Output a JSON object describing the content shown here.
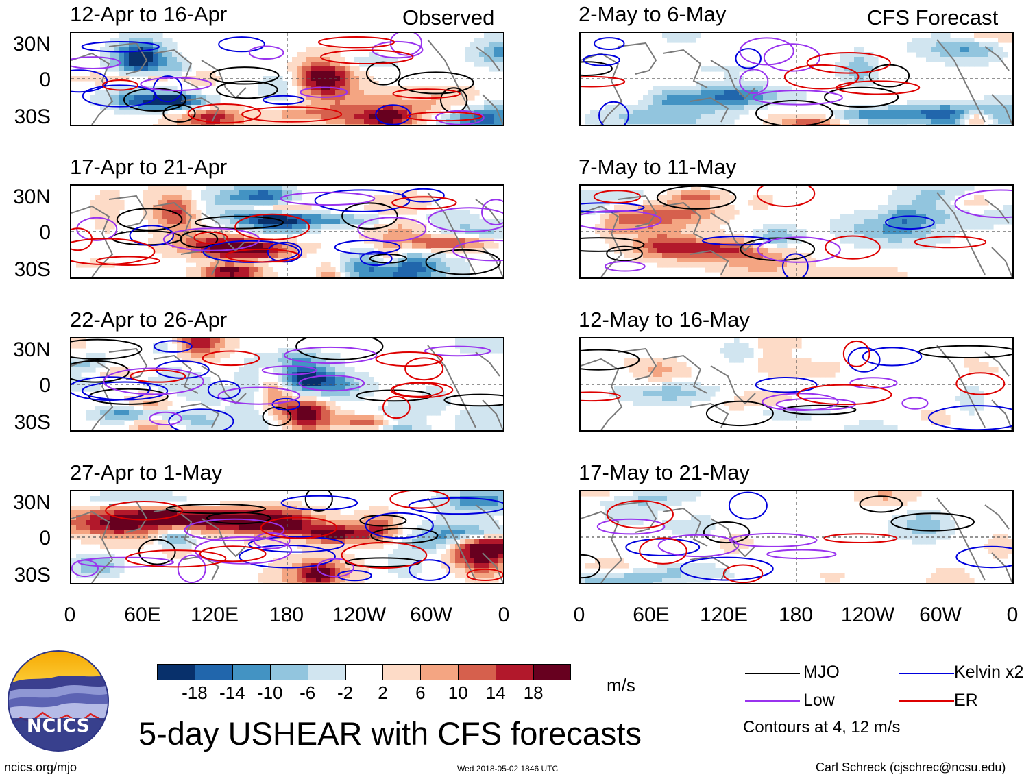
{
  "header": {
    "observed_label": "Observed",
    "forecast_label": "CFS Forecast"
  },
  "panels": {
    "observed": [
      {
        "title": "12-Apr to 16-Apr"
      },
      {
        "title": "17-Apr to 21-Apr"
      },
      {
        "title": "22-Apr to 26-Apr"
      },
      {
        "title": "27-Apr to 1-May"
      }
    ],
    "forecast": [
      {
        "title": "2-May to 6-May"
      },
      {
        "title": "7-May to 11-May"
      },
      {
        "title": "12-May to 16-May"
      },
      {
        "title": "17-May to 21-May"
      }
    ]
  },
  "axes": {
    "lat_labels": [
      "30N",
      "0",
      "30S"
    ],
    "lon_labels": [
      "0",
      "60E",
      "120E",
      "180",
      "120W",
      "60W",
      "0"
    ]
  },
  "colorbar": {
    "ticks": [
      "-18",
      "-14",
      "-10",
      "-6",
      "-2",
      "2",
      "6",
      "10",
      "14",
      "18"
    ],
    "colors": [
      "#08306b",
      "#2166ac",
      "#4393c3",
      "#92c5de",
      "#d1e5f0",
      "#ffffff",
      "#fddbc7",
      "#f4a582",
      "#d6604d",
      "#b2182b",
      "#67001f"
    ],
    "units": "m/s"
  },
  "legend": {
    "items": [
      {
        "label": "MJO",
        "color": "#000000"
      },
      {
        "label": "Kelvin x2",
        "color": "#0000dd"
      },
      {
        "label": "Low",
        "color": "#9933ee"
      },
      {
        "label": "ER",
        "color": "#dd0000"
      }
    ],
    "contours_note": "Contours at 4, 12 m/s"
  },
  "footer": {
    "title": "5-day USHEAR with CFS forecasts",
    "logo_text": "NCICS",
    "url": "ncics.org/mjo",
    "timestamp": "Wed 2018-05-02 1846 UTC",
    "author": "Carl Schreck (cjschrec@ncsu.edu)"
  }
}
